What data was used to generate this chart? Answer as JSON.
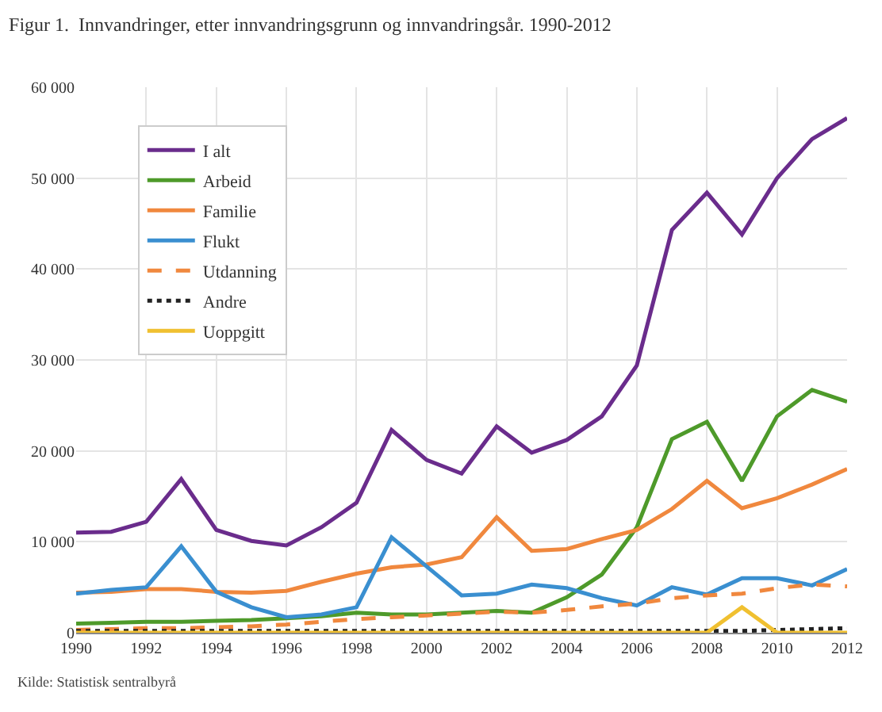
{
  "chart_data": {
    "type": "line",
    "title": "Figur 1.  Innvandringer, etter innvandringsgrunn og innvandringsår. 1990-2012",
    "x": [
      1990,
      1991,
      1992,
      1993,
      1994,
      1995,
      1996,
      1997,
      1998,
      1999,
      2000,
      2001,
      2002,
      2003,
      2004,
      2005,
      2006,
      2007,
      2008,
      2009,
      2010,
      2011,
      2012
    ],
    "series": [
      {
        "name": "I alt",
        "color": "#6a2c8c",
        "values": [
          11000,
          11100,
          12200,
          16900,
          11300,
          10100,
          9600,
          11600,
          14300,
          22300,
          19000,
          17500,
          22700,
          19800,
          21200,
          23800,
          29400,
          44300,
          48400,
          43800,
          50000,
          54300,
          56600
        ]
      },
      {
        "name": "Arbeid",
        "color": "#4e9a2a",
        "values": [
          1000,
          1100,
          1200,
          1200,
          1300,
          1400,
          1600,
          1800,
          2200,
          2000,
          2000,
          2200,
          2400,
          2200,
          3900,
          6400,
          11600,
          21300,
          23200,
          16700,
          23800,
          26700,
          25400
        ]
      },
      {
        "name": "Familie",
        "color": "#f0883e",
        "values": [
          4400,
          4500,
          4800,
          4800,
          4500,
          4400,
          4600,
          5600,
          6500,
          7200,
          7500,
          8300,
          12700,
          9000,
          9200,
          10300,
          11300,
          13600,
          16700,
          13700,
          14800,
          16300,
          18000
        ]
      },
      {
        "name": "Flukt",
        "color": "#3a8fd0",
        "values": [
          4300,
          4700,
          5000,
          9500,
          4500,
          2800,
          1700,
          2000,
          2800,
          10500,
          7300,
          4100,
          4300,
          5300,
          4900,
          3800,
          3000,
          5000,
          4200,
          6000,
          6000,
          5200,
          7000
        ]
      },
      {
        "name": "Utdanning",
        "color": "#f0883e",
        "line_style": "dashed",
        "values": [
          300,
          400,
          500,
          500,
          600,
          700,
          900,
          1200,
          1500,
          1700,
          1900,
          2100,
          2300,
          2200,
          2500,
          2900,
          3200,
          3800,
          4100,
          4300,
          4900,
          5300,
          5100
        ]
      },
      {
        "name": "Andre",
        "color": "#222222",
        "line_style": "dotted",
        "values": [
          200,
          200,
          200,
          200,
          200,
          200,
          200,
          200,
          200,
          200,
          200,
          200,
          200,
          200,
          200,
          200,
          200,
          200,
          200,
          200,
          300,
          400,
          500
        ]
      },
      {
        "name": "Uoppgitt",
        "color": "#f0c030",
        "values": [
          0,
          0,
          0,
          0,
          0,
          0,
          0,
          0,
          0,
          0,
          0,
          0,
          0,
          0,
          0,
          0,
          0,
          0,
          0,
          2800,
          0,
          0,
          0
        ]
      }
    ],
    "xlim": [
      1990,
      2012
    ],
    "xticks": [
      1990,
      1992,
      1994,
      1996,
      1998,
      2000,
      2002,
      2004,
      2006,
      2008,
      2010,
      2012
    ],
    "ylim": [
      0,
      60000
    ],
    "yticks": [
      {
        "value": 0,
        "label": "0"
      },
      {
        "value": 10000,
        "label": "10 000"
      },
      {
        "value": 20000,
        "label": "20 000"
      },
      {
        "value": 30000,
        "label": "30 000"
      },
      {
        "value": 40000,
        "label": "40 000"
      },
      {
        "value": 50000,
        "label": "50 000"
      },
      {
        "value": 60000,
        "label": "60 000"
      }
    ],
    "grid": true,
    "legend": "top left",
    "line_style": "solid",
    "marker": "none",
    "annotations": [
      "Kilde: Statistisk sentralbyrå"
    ]
  }
}
